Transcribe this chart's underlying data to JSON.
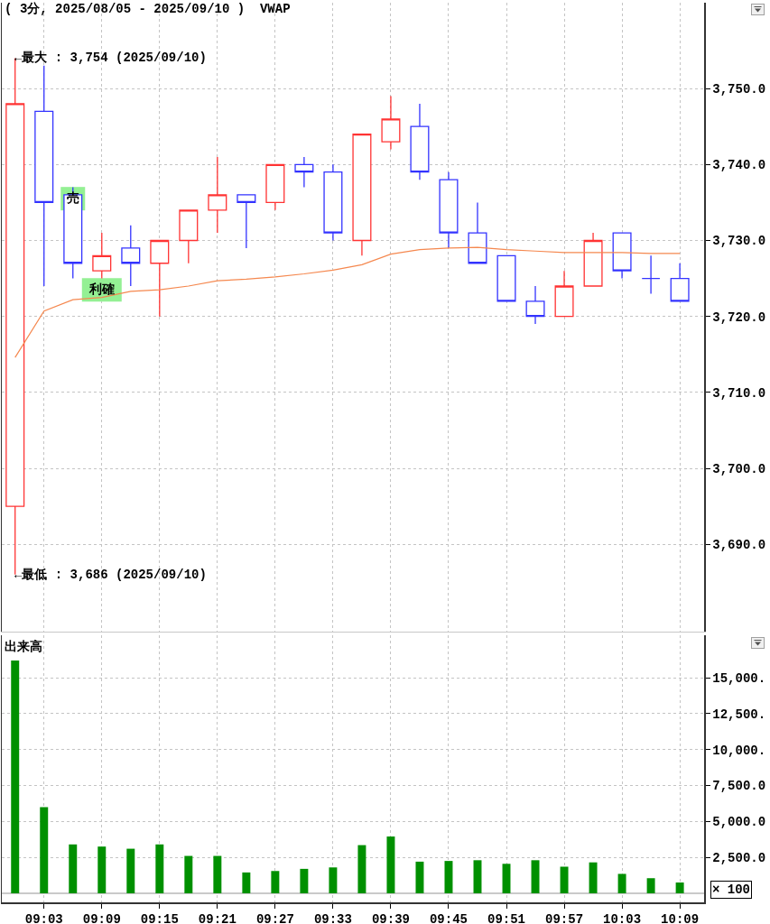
{
  "chart_data": [
    {
      "type": "candlestick",
      "title": "( 3分, 2025/08/05 - 2025/09/10 )  VWAP",
      "x": [
        9,
        9.05,
        9.1,
        9.15,
        9.2,
        9.25,
        9.3,
        9.35,
        9.4,
        9.45,
        9.5,
        9.55,
        9.6,
        9.65,
        9.7,
        9.75,
        9.8,
        9.85,
        9.9,
        9.95,
        10,
        10.05,
        10.1,
        10.15
      ],
      "ohlc": [
        [
          3695,
          3754,
          3686,
          3748
        ],
        [
          3747,
          3753,
          3724,
          3735
        ],
        [
          3736,
          3737,
          3725,
          3727
        ],
        [
          3726,
          3731,
          3725,
          3728
        ],
        [
          3729,
          3732,
          3724,
          3727
        ],
        [
          3727,
          3730,
          3720,
          3730
        ],
        [
          3730,
          3734,
          3727,
          3734
        ],
        [
          3734,
          3741,
          3731,
          3736
        ],
        [
          3736,
          3736,
          3729,
          3735
        ],
        [
          3735,
          3740,
          3734,
          3740
        ],
        [
          3740,
          3741,
          3737,
          3739
        ],
        [
          3739,
          3740,
          3730,
          3731
        ],
        [
          3730,
          3744,
          3728,
          3744
        ],
        [
          3743,
          3749,
          3742,
          3746
        ],
        [
          3745,
          3748,
          3738,
          3739
        ],
        [
          3738,
          3739,
          3729,
          3731
        ],
        [
          3731,
          3735,
          3727,
          3727
        ],
        [
          3728,
          3728,
          3722,
          3722
        ],
        [
          3722,
          3724,
          3719,
          3720
        ],
        [
          3720,
          3726,
          3720,
          3724
        ],
        [
          3724,
          3731,
          3724,
          3730
        ],
        [
          3731,
          3731,
          3725,
          3726
        ],
        [
          3725,
          3728,
          3723,
          3725
        ],
        [
          3725,
          3727,
          3722,
          3722
        ]
      ],
      "colors": [
        "#ff3333",
        "#3333ff",
        "#3333ff",
        "#ff3333",
        "#3333ff",
        "#ff3333",
        "#ff3333",
        "#ff3333",
        "#3333ff",
        "#ff3333",
        "#3333ff",
        "#3333ff",
        "#ff3333",
        "#ff3333",
        "#3333ff",
        "#3333ff",
        "#3333ff",
        "#3333ff",
        "#3333ff",
        "#ff3333",
        "#ff3333",
        "#3333ff",
        "#3333ff",
        "#3333ff"
      ],
      "series": [
        {
          "type": "line",
          "color": "#f5884f",
          "values": [
            3714.6,
            3720.7,
            3722.2,
            3722.5,
            3723.3,
            3723.5,
            3724.0,
            3724.7,
            3724.9,
            3725.2,
            3725.6,
            3726.1,
            3726.8,
            3728.2,
            3728.8,
            3729.0,
            3729.1,
            3728.8,
            3728.6,
            3728.4,
            3728.4,
            3728.4,
            3728.3,
            3728.3
          ]
        }
      ],
      "xlim": [
        8.977,
        10.192
      ],
      "xticks": [
        {
          "value": 9.05,
          "label": null
        },
        {
          "value": 9.15,
          "label": null
        },
        {
          "value": 9.25,
          "label": null
        },
        {
          "value": 9.35,
          "label": null
        },
        {
          "value": 9.45,
          "label": null
        },
        {
          "value": 9.55,
          "label": null
        },
        {
          "value": 9.65,
          "label": null
        },
        {
          "value": 9.75,
          "label": null
        },
        {
          "value": 9.85,
          "label": null
        },
        {
          "value": 9.95,
          "label": null
        },
        {
          "value": 10.05,
          "label": null
        },
        {
          "value": 10.15,
          "label": null
        }
      ],
      "ylim": [
        3678.5,
        3761.3
      ],
      "yticks": [
        {
          "value": 3690,
          "label": "3,690.0"
        },
        {
          "value": 3700,
          "label": "3,700.0"
        },
        {
          "value": 3710,
          "label": "3,710.0"
        },
        {
          "value": 3720,
          "label": "3,720.0"
        },
        {
          "value": 3730,
          "label": "3,730.0"
        },
        {
          "value": 3740,
          "label": "3,740.0"
        },
        {
          "value": 3750,
          "label": "3,750.0"
        }
      ],
      "grid": true,
      "tick_labels": "y",
      "annotations": [
        {
          "text": "←最大 : 3,754 (2025/09/10)",
          "x": 9,
          "y": 3754
        },
        {
          "text": "←最低 : 3,686 (2025/09/10)",
          "x": 9,
          "y": 3686
        },
        {
          "text": "売",
          "x": 9.1,
          "y": 3735.5
        },
        {
          "text": "利確",
          "x": 9.15,
          "y": 3723.5
        }
      ]
    },
    {
      "type": "bar",
      "title": "出来高",
      "x": [
        9,
        9.05,
        9.1,
        9.15,
        9.2,
        9.25,
        9.3,
        9.35,
        9.4,
        9.45,
        9.5,
        9.55,
        9.6,
        9.65,
        9.7,
        9.75,
        9.8,
        9.85,
        9.9,
        9.95,
        10,
        10.05,
        10.1,
        10.15
      ],
      "values": [
        16200,
        6000,
        3400,
        3250,
        3100,
        3400,
        2600,
        2600,
        1450,
        1550,
        1700,
        1800,
        3350,
        3950,
        2200,
        2250,
        2300,
        2050,
        2300,
        1850,
        2150,
        1350,
        1050,
        750
      ],
      "color": "#009000",
      "xlim": [
        8.977,
        10.192
      ],
      "xticks": [
        {
          "value": 9.05,
          "label": "09:03"
        },
        {
          "value": 9.15,
          "label": "09:09"
        },
        {
          "value": 9.25,
          "label": "09:15"
        },
        {
          "value": 9.35,
          "label": "09:21"
        },
        {
          "value": 9.45,
          "label": "09:27"
        },
        {
          "value": 9.55,
          "label": "09:33"
        },
        {
          "value": 9.65,
          "label": "09:39"
        },
        {
          "value": 9.75,
          "label": "09:45"
        },
        {
          "value": 9.85,
          "label": "09:51"
        },
        {
          "value": 9.95,
          "label": "09:57"
        },
        {
          "value": 10.05,
          "label": "10:03"
        },
        {
          "value": 10.15,
          "label": "10:09"
        }
      ],
      "ylim": [
        -630,
        17950
      ],
      "yticks": [
        {
          "value": 2500,
          "label": "2,500.0"
        },
        {
          "value": 5000,
          "label": "5,000.0"
        },
        {
          "value": 7500,
          "label": "7,500.0"
        },
        {
          "value": 10000,
          "label": "10,000."
        },
        {
          "value": 12500,
          "label": "12,500."
        },
        {
          "value": 15000,
          "label": "15,000."
        }
      ],
      "grid": true,
      "ref_lines": [
        {
          "axis": "y",
          "value": 0,
          "color": "#b8b8b8"
        }
      ],
      "annotations": [
        "× 100"
      ]
    }
  ]
}
